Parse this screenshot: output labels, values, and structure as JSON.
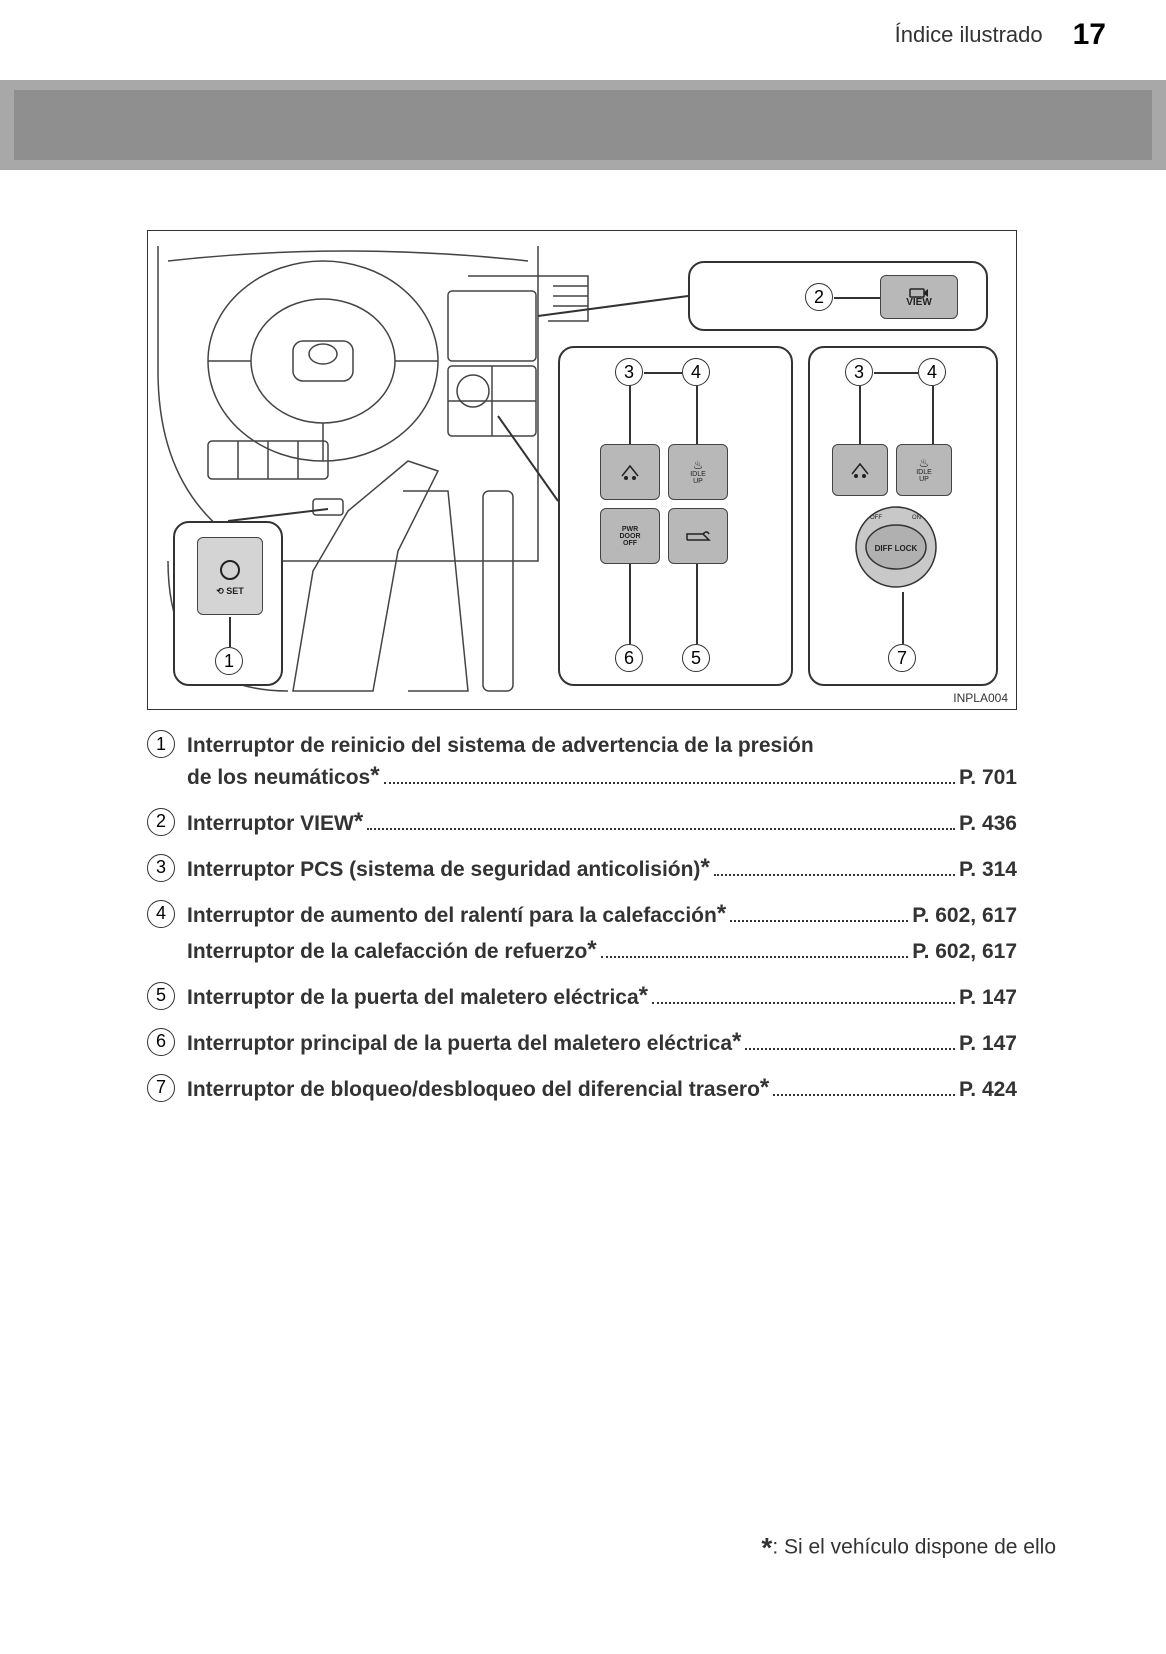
{
  "header": {
    "section": "Índice ilustrado",
    "page": "17"
  },
  "diagram": {
    "code": "INPLA004",
    "view_label": "VIEW",
    "idle_label": "IDLE\nUP",
    "pwr_label": "PWR\nDOOR\nOFF",
    "diff_label": "DIFF LOCK",
    "set_label": "SET"
  },
  "items": [
    {
      "n": "1",
      "lines": [
        {
          "text": "Interruptor de reinicio del sistema de advertencia de la presión",
          "page": ""
        },
        {
          "text": "de los neumáticos",
          "star": true,
          "page": "P. 701"
        }
      ]
    },
    {
      "n": "2",
      "lines": [
        {
          "text": "Interruptor VIEW",
          "star": true,
          "page": "P. 436"
        }
      ]
    },
    {
      "n": "3",
      "lines": [
        {
          "text": "Interruptor PCS (sistema de seguridad anticolisión)",
          "star": true,
          "page": "P. 314"
        }
      ]
    },
    {
      "n": "4",
      "lines": [
        {
          "text": "Interruptor de aumento del ralentí para la calefacción",
          "star": true,
          "page": "P. 602, 617"
        },
        {
          "text": "Interruptor de la calefacción de refuerzo",
          "star": true,
          "page": "P. 602, 617"
        }
      ]
    },
    {
      "n": "5",
      "lines": [
        {
          "text": "Interruptor de la puerta del maletero eléctrica",
          "star": true,
          "page": "P. 147"
        }
      ]
    },
    {
      "n": "6",
      "lines": [
        {
          "text": "Interruptor principal de la puerta del maletero eléctrica",
          "star": true,
          "page": "P. 147"
        }
      ]
    },
    {
      "n": "7",
      "lines": [
        {
          "text": "Interruptor de bloqueo/desbloqueo del diferencial trasero",
          "star": true,
          "page": "P. 424"
        }
      ]
    }
  ],
  "footnote": {
    "symbol": "*",
    "text": ": Si el vehículo dispone de ello"
  },
  "colors": {
    "band": "#a8a8a8",
    "text": "#333333"
  }
}
